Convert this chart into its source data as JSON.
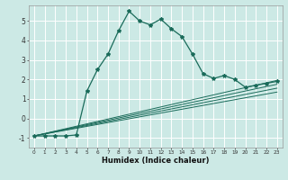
{
  "title": "",
  "xlabel": "Humidex (Indice chaleur)",
  "bg_color": "#cce9e5",
  "grid_color": "#ffffff",
  "line_color": "#1a6b5a",
  "xlim": [
    -0.5,
    23.5
  ],
  "ylim": [
    -1.5,
    5.8
  ],
  "xticks": [
    0,
    1,
    2,
    3,
    4,
    5,
    6,
    7,
    8,
    9,
    10,
    11,
    12,
    13,
    14,
    15,
    16,
    17,
    18,
    19,
    20,
    21,
    22,
    23
  ],
  "yticks": [
    -1,
    0,
    1,
    2,
    3,
    4,
    5
  ],
  "main_x": [
    0,
    1,
    2,
    3,
    4,
    5,
    6,
    7,
    8,
    9,
    10,
    11,
    12,
    13,
    14,
    15,
    16,
    17,
    18,
    19,
    20,
    21,
    22,
    23
  ],
  "main_y": [
    -0.9,
    -0.9,
    -0.9,
    -0.9,
    -0.85,
    1.4,
    2.5,
    3.3,
    4.5,
    5.5,
    5.0,
    4.8,
    5.1,
    4.6,
    4.2,
    3.3,
    2.3,
    2.05,
    2.2,
    2.0,
    1.6,
    1.7,
    1.8,
    1.9
  ],
  "ref_lines": [
    {
      "x": [
        0,
        23
      ],
      "y": [
        -0.9,
        1.95
      ]
    },
    {
      "x": [
        0,
        23
      ],
      "y": [
        -0.9,
        1.75
      ]
    },
    {
      "x": [
        0,
        23
      ],
      "y": [
        -0.9,
        1.55
      ]
    },
    {
      "x": [
        0,
        23
      ],
      "y": [
        -0.9,
        1.35
      ]
    }
  ],
  "xlabel_fontsize": 6.0,
  "ytick_fontsize": 5.5,
  "xtick_fontsize": 4.2
}
